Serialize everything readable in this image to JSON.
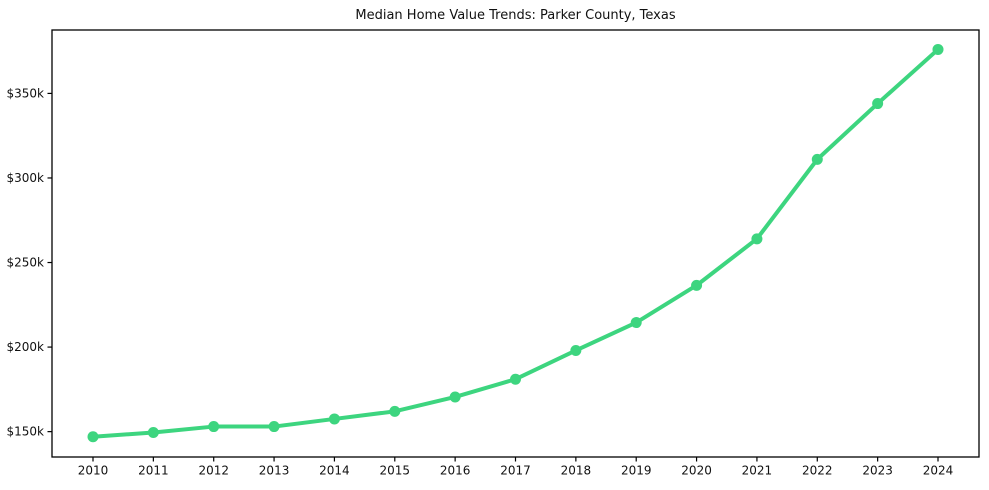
{
  "chart_data": {
    "type": "line",
    "title": "Median Home Value Trends: Parker County, Texas",
    "xlabel": "",
    "ylabel": "",
    "x": [
      2010,
      2011,
      2012,
      2013,
      2014,
      2015,
      2016,
      2017,
      2018,
      2019,
      2020,
      2021,
      2022,
      2023,
      2024
    ],
    "xtick_labels": [
      "2010",
      "2011",
      "2012",
      "2013",
      "2014",
      "2015",
      "2016",
      "2017",
      "2018",
      "2019",
      "2020",
      "2021",
      "2022",
      "2023",
      "2024"
    ],
    "series": [
      {
        "name": "Median Home Value",
        "values": [
          147000,
          149500,
          153000,
          153000,
          157500,
          162000,
          170500,
          181000,
          198000,
          214500,
          236500,
          264000,
          311000,
          344000,
          376000
        ]
      }
    ],
    "ylim": [
      135000,
      387500
    ],
    "yticks": [
      150000,
      200000,
      250000,
      300000,
      350000
    ],
    "ytick_labels": [
      "$150k",
      "$200k",
      "$250k",
      "$300k",
      "$350k"
    ],
    "grid": false,
    "legend_position": "none",
    "line_color": "#3dd57f",
    "marker_color": "#3dd57f",
    "spine_color": "#000000",
    "text_color": "#111111",
    "background_color": "#ffffff"
  }
}
